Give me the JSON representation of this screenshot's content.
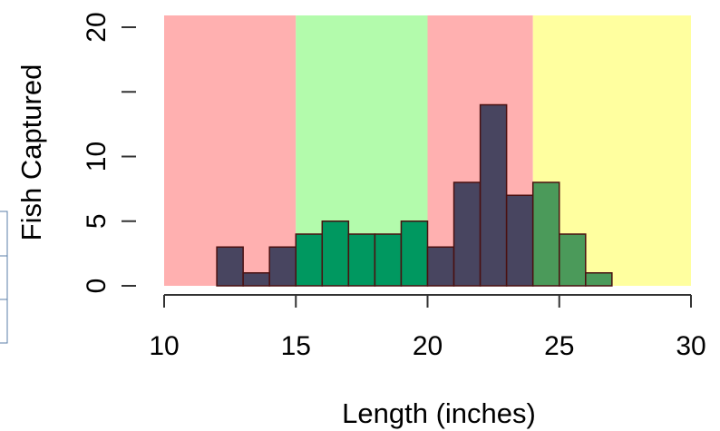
{
  "chart_data": {
    "type": "bar",
    "subtype": "histogram",
    "xlabel": "Length (inches)",
    "ylabel": "Fish Captured",
    "xlim": [
      10,
      30
    ],
    "ylim": [
      0,
      20
    ],
    "x_ticks": [
      10,
      15,
      20,
      25,
      30
    ],
    "y_ticks": [
      0,
      5,
      10,
      20
    ],
    "bin_width": 1,
    "bins": [
      {
        "start": 12,
        "end": 13,
        "count": 3
      },
      {
        "start": 13,
        "end": 14,
        "count": 1
      },
      {
        "start": 14,
        "end": 15,
        "count": 3
      },
      {
        "start": 15,
        "end": 16,
        "count": 4
      },
      {
        "start": 16,
        "end": 17,
        "count": 5
      },
      {
        "start": 17,
        "end": 18,
        "count": 4
      },
      {
        "start": 18,
        "end": 19,
        "count": 4
      },
      {
        "start": 19,
        "end": 20,
        "count": 5
      },
      {
        "start": 20,
        "end": 21,
        "count": 3
      },
      {
        "start": 21,
        "end": 22,
        "count": 8
      },
      {
        "start": 22,
        "end": 23,
        "count": 14
      },
      {
        "start": 23,
        "end": 24,
        "count": 7
      },
      {
        "start": 24,
        "end": 25,
        "count": 8
      },
      {
        "start": 25,
        "end": 26,
        "count": 4
      },
      {
        "start": 26,
        "end": 27,
        "count": 1
      }
    ],
    "background_regions": [
      {
        "from": 10,
        "to": 15,
        "color": "#ffb0b0"
      },
      {
        "from": 15,
        "to": 20,
        "color": "#b3fbac"
      },
      {
        "from": 20,
        "to": 24,
        "color": "#ffb0b0"
      },
      {
        "from": 24,
        "to": 30,
        "color": "#ffff9f"
      }
    ],
    "bar_colors": {
      "red_region": "#484560",
      "green_region": "#009860",
      "yellow_region": "#4b9a5a"
    },
    "grid": false,
    "legend": "none"
  }
}
